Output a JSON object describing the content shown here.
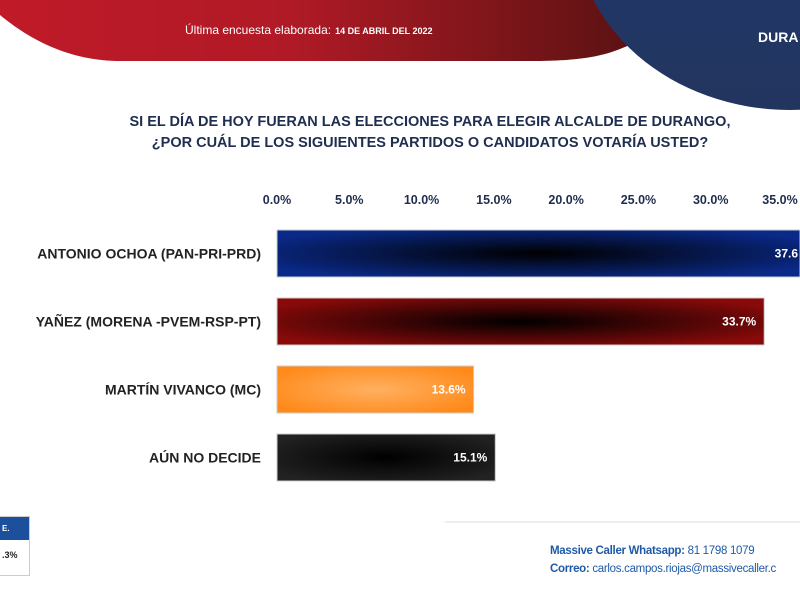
{
  "header": {
    "survey_label": "Última encuesta elaborada:",
    "survey_date": "14 DE ABRIL DEL 2022",
    "region": "DURA"
  },
  "question": {
    "line1": "SI EL DÍA DE HOY FUERAN LAS ELECCIONES PARA ELEGIR ALCALDE DE DURANGO,",
    "line2": "¿POR CUÁL DE LOS SIGUIENTES PARTIDOS O CANDIDATOS VOTARÍA USTED?"
  },
  "chart_data": {
    "type": "bar",
    "orientation": "horizontal",
    "categories": [
      "ANTONIO OCHOA (PAN-PRI-PRD)",
      "YAÑEZ (MORENA -PVEM-RSP-PT)",
      "MARTÍN VIVANCO (MC)",
      "AÚN NO DECIDE"
    ],
    "values": [
      37.6,
      33.7,
      13.6,
      15.1
    ],
    "value_labels": [
      "37.6",
      "33.7%",
      "13.6%",
      "15.1%"
    ],
    "colors": [
      "#0a2a8a",
      "#8a0a0a",
      "#ff8a1a",
      "#222222"
    ],
    "tick_labels": [
      "0.0%",
      "5.0%",
      "10.0%",
      "15.0%",
      "20.0%",
      "25.0%",
      "30.0%",
      "35.0%"
    ],
    "xlim": [
      0,
      35
    ],
    "axis_position": "top",
    "grid": false
  },
  "legend_box": {
    "header": "E.",
    "value": ".3%"
  },
  "contact": {
    "whatsapp_label": "Massive Caller Whatsapp:",
    "whatsapp": "81 1798 1079",
    "email_label": "Correo:",
    "email": "carlos.campos.riojas@massivecaller.c"
  }
}
